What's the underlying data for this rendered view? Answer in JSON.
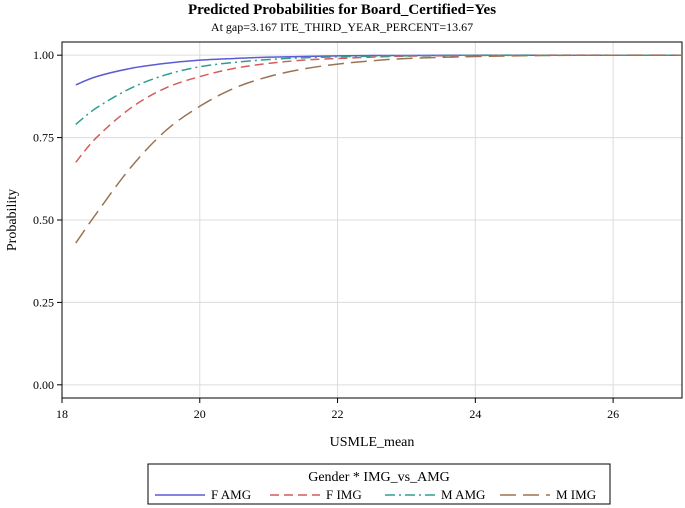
{
  "chart_data": {
    "type": "line",
    "title": "Predicted Probabilities for Board_Certified=Yes",
    "subtitle": "At gap=3.167 ITE_THIRD_YEAR_PERCENT=13.67",
    "xlabel": "USMLE_mean",
    "ylabel": "Probability",
    "xlim": [
      18,
      27
    ],
    "ylim": [
      -0.04,
      1.04
    ],
    "xticks": [
      "18",
      "20",
      "22",
      "24",
      "26"
    ],
    "yticks": [
      "0.00",
      "0.25",
      "0.50",
      "0.75",
      "1.00"
    ],
    "grid": true,
    "legend": {
      "title": "Gender * IMG_vs_AMG",
      "position": "bottom"
    },
    "x": [
      18.2,
      18.5,
      19,
      19.5,
      20,
      20.5,
      21,
      21.5,
      22,
      22.5,
      23,
      24,
      25,
      26,
      27
    ],
    "series": [
      {
        "name": "F AMG",
        "color": "#5b5bd6",
        "dash": "solid",
        "values": [
          0.91,
          0.935,
          0.96,
          0.975,
          0.985,
          0.99,
          0.994,
          0.996,
          0.998,
          0.999,
          0.999,
          1.0,
          1.0,
          1.0,
          1.0
        ]
      },
      {
        "name": "F IMG",
        "color": "#d45c5c",
        "dash": "dash",
        "values": [
          0.675,
          0.75,
          0.84,
          0.9,
          0.935,
          0.96,
          0.975,
          0.985,
          0.99,
          0.994,
          0.997,
          0.999,
          1.0,
          1.0,
          1.0
        ]
      },
      {
        "name": "M AMG",
        "color": "#2f9e8f",
        "dash": "dashdot",
        "values": [
          0.79,
          0.84,
          0.9,
          0.94,
          0.965,
          0.978,
          0.987,
          0.992,
          0.995,
          0.997,
          0.998,
          1.0,
          1.0,
          1.0,
          1.0
        ]
      },
      {
        "name": "M IMG",
        "color": "#9b7352",
        "dash": "longdash",
        "values": [
          0.43,
          0.52,
          0.66,
          0.77,
          0.845,
          0.9,
          0.935,
          0.958,
          0.973,
          0.983,
          0.99,
          0.996,
          0.999,
          1.0,
          1.0
        ]
      }
    ]
  }
}
